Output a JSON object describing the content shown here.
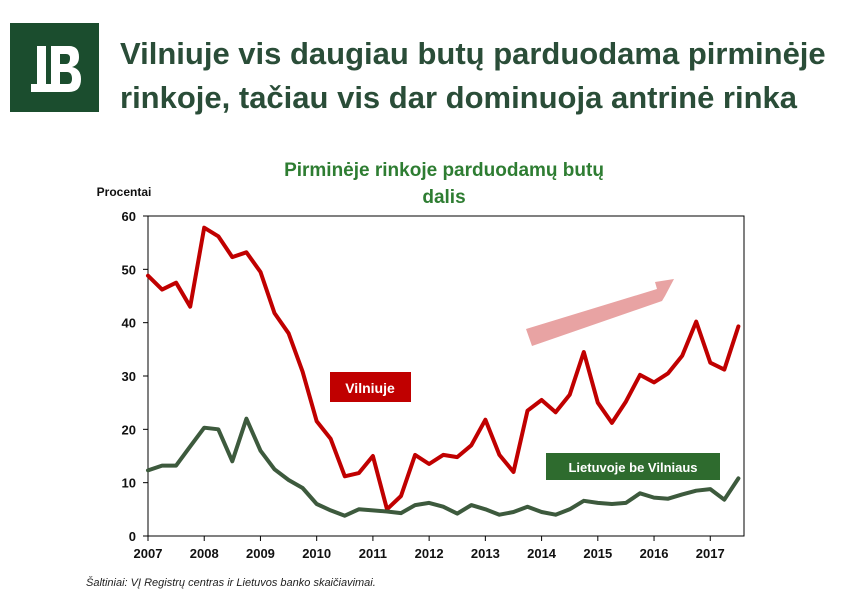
{
  "header": {
    "title_line1": "Vilniuje vis daugiau butų parduodama pirminėje",
    "title_line2": "rinkoje, tačiau vis dar dominuoja antrinė rinka",
    "logo_icon": "bank-of-lithuania-logo-icon"
  },
  "footer": {
    "source": "Šaltiniai: VĮ Registrų centras ir Lietuvos banko skaičiavimai."
  },
  "colors": {
    "brand": "#1b4d2e",
    "vilnius": "#c00000",
    "rest": "#3d5a3d",
    "title_green": "#2e7d32",
    "arrow": "#e8a3a3"
  },
  "chart_data": {
    "type": "line",
    "title_line1": "Pirminėje rinkoje parduodamų butų",
    "title_line2": "dalis",
    "ylabel": "Procentai",
    "xlabel": "",
    "ylim": [
      0,
      60
    ],
    "xlim": [
      2007,
      2017.6
    ],
    "yticks": [
      0,
      10,
      20,
      30,
      40,
      50,
      60
    ],
    "xticks": [
      "2007",
      "2008",
      "2009",
      "2010",
      "2011",
      "2012",
      "2013",
      "2014",
      "2015",
      "2016",
      "2017"
    ],
    "grid": false,
    "series": [
      {
        "name": "Vilniuje",
        "color": "#c00000",
        "x": [
          2007.0,
          2007.25,
          2007.5,
          2007.75,
          2008.0,
          2008.25,
          2008.5,
          2008.75,
          2009.0,
          2009.25,
          2009.5,
          2009.75,
          2010.0,
          2010.25,
          2010.5,
          2010.75,
          2011.0,
          2011.25,
          2011.5,
          2011.75,
          2012.0,
          2012.25,
          2012.5,
          2012.75,
          2013.0,
          2013.25,
          2013.5,
          2013.75,
          2014.0,
          2014.25,
          2014.5,
          2014.75,
          2015.0,
          2015.25,
          2015.5,
          2015.75,
          2016.0,
          2016.25,
          2016.5,
          2016.75,
          2017.0,
          2017.25,
          2017.5
        ],
        "values": [
          48.8,
          46.2,
          47.5,
          43.0,
          57.8,
          56.2,
          52.3,
          53.2,
          49.5,
          41.8,
          38.0,
          30.8,
          21.5,
          18.2,
          11.2,
          11.8,
          15.0,
          5.0,
          7.5,
          15.2,
          13.5,
          15.2,
          14.8,
          17.0,
          21.8,
          15.2,
          12.0,
          23.5,
          25.5,
          23.2,
          26.5,
          34.5,
          25.0,
          21.2,
          25.2,
          30.2,
          28.8,
          30.5,
          33.8,
          40.2,
          32.5,
          31.2,
          39.3
        ]
      },
      {
        "name": "Lietuvoje be Vilniaus",
        "color": "#3d5a3d",
        "x": [
          2007.0,
          2007.25,
          2007.5,
          2007.75,
          2008.0,
          2008.25,
          2008.5,
          2008.75,
          2009.0,
          2009.25,
          2009.5,
          2009.75,
          2010.0,
          2010.25,
          2010.5,
          2010.75,
          2011.0,
          2011.25,
          2011.5,
          2011.75,
          2012.0,
          2012.25,
          2012.5,
          2012.75,
          2013.0,
          2013.25,
          2013.5,
          2013.75,
          2014.0,
          2014.25,
          2014.5,
          2014.75,
          2015.0,
          2015.25,
          2015.5,
          2015.75,
          2016.0,
          2016.25,
          2016.5,
          2016.75,
          2017.0,
          2017.25,
          2017.5
        ],
        "values": [
          12.3,
          13.2,
          13.2,
          16.8,
          20.3,
          20.0,
          14.0,
          22.0,
          16.0,
          12.5,
          10.5,
          9.0,
          6.0,
          4.8,
          3.8,
          5.0,
          4.8,
          4.6,
          4.3,
          5.8,
          6.2,
          5.5,
          4.2,
          5.8,
          5.0,
          4.0,
          4.5,
          5.5,
          4.5,
          4.0,
          5.0,
          6.6,
          6.2,
          6.0,
          6.2,
          8.0,
          7.2,
          7.0,
          7.8,
          8.5,
          8.8,
          6.8,
          10.8
        ]
      }
    ],
    "annotations": {
      "vilnius_label": "Vilniuje",
      "rest_label": "Lietuvoje be Vilniaus"
    }
  }
}
